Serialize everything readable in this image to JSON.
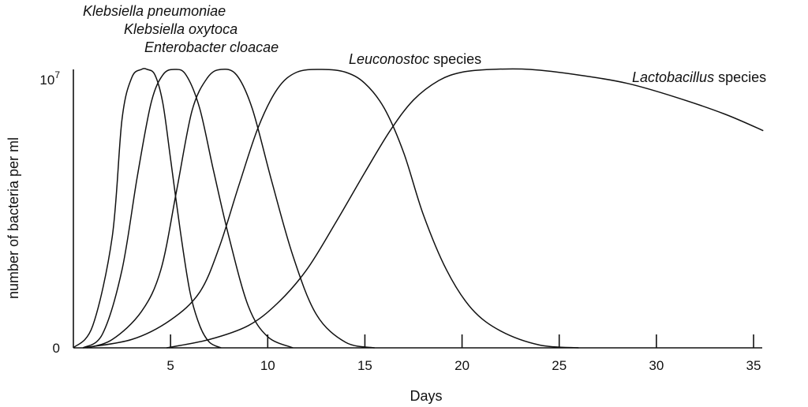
{
  "chart_data": {
    "type": "line",
    "xlabel": "Days",
    "ylabel": "number of bacteria per ml",
    "xlim": [
      0,
      35.5
    ],
    "ylim": [
      0,
      1
    ],
    "x_ticks": [
      "5",
      "10",
      "15",
      "20",
      "25",
      "30",
      "35"
    ],
    "y_ticks": {
      "bottom": "0",
      "top_base": "10",
      "top_exp": "7"
    },
    "grid": false,
    "legend": "none",
    "series": [
      {
        "name": "Klebsiella pneumoniae",
        "name_italic": "Klebsiella pneumoniae",
        "name_plain": "",
        "x": [
          0,
          1,
          2,
          2.5,
          3,
          3.5,
          3.8,
          4.2,
          4.6,
          5,
          5.5,
          6,
          6.5,
          7,
          7.6
        ],
        "y": [
          0,
          0.08,
          0.4,
          0.82,
          0.97,
          1.0,
          1.0,
          0.98,
          0.88,
          0.68,
          0.42,
          0.2,
          0.08,
          0.02,
          0
        ]
      },
      {
        "name": "Klebsiella oxytoca",
        "name_italic": "Klebsiella oxytoca",
        "name_plain": "",
        "x": [
          0.5,
          1.5,
          2.5,
          3.3,
          4,
          4.6,
          5.2,
          5.8,
          6.5,
          7.2,
          8,
          9,
          10,
          11.3
        ],
        "y": [
          0,
          0.05,
          0.28,
          0.62,
          0.88,
          0.98,
          1.0,
          0.98,
          0.86,
          0.64,
          0.4,
          0.15,
          0.04,
          0
        ]
      },
      {
        "name": "Enterobacter cloacae",
        "name_italic": "Enterobacter cloacae",
        "name_plain": "",
        "x": [
          0.7,
          2,
          3.5,
          4.5,
          5.3,
          6.1,
          6.9,
          7.6,
          8.4,
          9.2,
          10.2,
          11.3,
          12.5,
          14,
          15.5
        ],
        "y": [
          0,
          0.03,
          0.13,
          0.28,
          0.56,
          0.85,
          0.97,
          1.0,
          0.98,
          0.86,
          0.6,
          0.33,
          0.12,
          0.02,
          0
        ]
      },
      {
        "name": "Leuconostoc species",
        "name_italic": "Leuconostoc",
        "name_plain": " species",
        "x": [
          0.5,
          3,
          5,
          6.5,
          7.5,
          8.5,
          9.5,
          10.5,
          11.5,
          12.8,
          14,
          15,
          16,
          17,
          18,
          19.2,
          20.5,
          22,
          24,
          26
        ],
        "y": [
          0,
          0.03,
          0.1,
          0.2,
          0.36,
          0.58,
          0.79,
          0.93,
          0.99,
          1.0,
          0.99,
          0.95,
          0.86,
          0.7,
          0.48,
          0.28,
          0.14,
          0.06,
          0.01,
          0
        ]
      },
      {
        "name": "Lactobacillus species",
        "name_italic": "Lactobacillus",
        "name_plain": " species",
        "x": [
          4.8,
          7,
          9,
          10.5,
          12,
          13.5,
          15,
          16.3,
          17.5,
          18.8,
          20,
          21.5,
          23.5,
          26,
          28.5,
          31,
          33.5,
          35.5
        ],
        "y": [
          0,
          0.03,
          0.08,
          0.16,
          0.28,
          0.45,
          0.63,
          0.78,
          0.89,
          0.96,
          0.99,
          1.0,
          1.0,
          0.98,
          0.95,
          0.9,
          0.84,
          0.78
        ]
      }
    ]
  }
}
